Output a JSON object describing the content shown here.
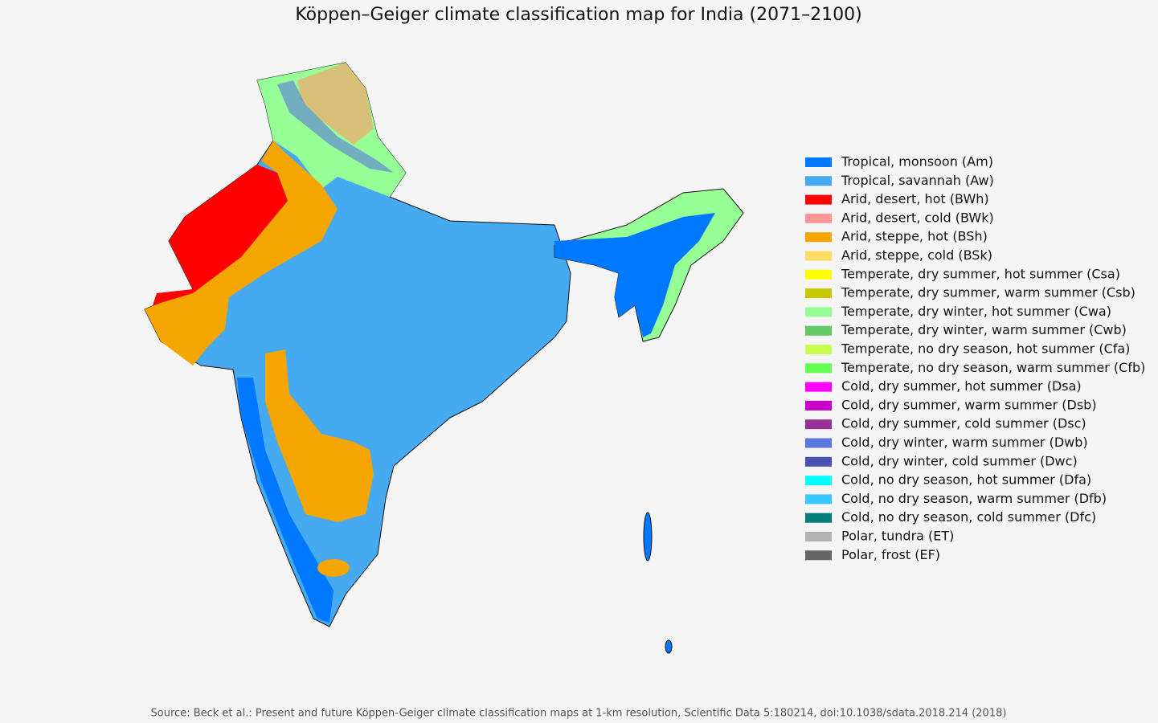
{
  "title": "Köppen–Geiger climate classification map for India (2071–2100)",
  "legend": [
    {
      "label": "Tropical, monsoon (Am)",
      "color": "#0078ff"
    },
    {
      "label": "Tropical, savannah (Aw)",
      "color": "#46aaf0"
    },
    {
      "label": "Arid, desert, hot (BWh)",
      "color": "#ff0000"
    },
    {
      "label": "Arid, desert, cold (BWk)",
      "color": "#ff9696"
    },
    {
      "label": "Arid, steppe, hot (BSh)",
      "color": "#f5a500"
    },
    {
      "label": "Arid, steppe, cold (BSk)",
      "color": "#ffdc64"
    },
    {
      "label": "Temperate, dry summer, hot summer (Csa)",
      "color": "#ffff00"
    },
    {
      "label": "Temperate, dry summer, warm summer (Csb)",
      "color": "#c8c800"
    },
    {
      "label": "Temperate, dry winter, hot summer (Cwa)",
      "color": "#96ff96"
    },
    {
      "label": "Temperate, dry winter, warm summer (Cwb)",
      "color": "#64c864"
    },
    {
      "label": "Temperate, no dry season, hot summer (Cfa)",
      "color": "#c8ff50"
    },
    {
      "label": "Temperate, no dry season, warm summer (Cfb)",
      "color": "#64ff50"
    },
    {
      "label": "Cold, dry summer, hot summer (Dsa)",
      "color": "#ff00ff"
    },
    {
      "label": "Cold, dry summer, warm summer (Dsb)",
      "color": "#c800c8"
    },
    {
      "label": "Cold, dry summer, cold summer (Dsc)",
      "color": "#963296"
    },
    {
      "label": "Cold, dry winter, warm summer (Dwb)",
      "color": "#5a78dc"
    },
    {
      "label": "Cold, dry winter, cold summer (Dwc)",
      "color": "#4b50b4"
    },
    {
      "label": "Cold, no dry season, hot summer (Dfa)",
      "color": "#00ffff"
    },
    {
      "label": "Cold, no dry season, warm summer (Dfb)",
      "color": "#37c8ff"
    },
    {
      "label": "Cold, no dry season, cold summer (Dfc)",
      "color": "#007d7d"
    },
    {
      "label": "Polar, tundra (ET)",
      "color": "#b2b2b2"
    },
    {
      "label": "Polar, frost (EF)",
      "color": "#666666"
    }
  ],
  "source": "Source: Beck et al.: Present and future Köppen-Geiger climate classification maps at 1-km resolution, Scientific Data 5:180214, doi:10.1038/sdata.2018.214 (2018)"
}
